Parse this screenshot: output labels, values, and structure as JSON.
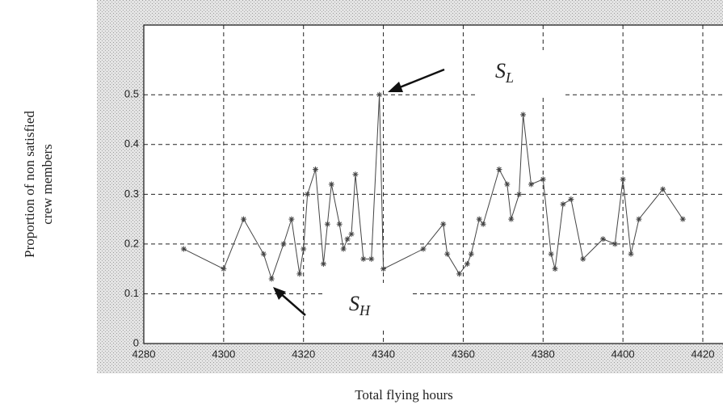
{
  "chart_data": {
    "type": "line",
    "xlabel": "Total flying hours",
    "ylabel": [
      "Proportion of non satisfied",
      "crew members"
    ],
    "annotations": [
      {
        "text": "S",
        "subscript": "L"
      },
      {
        "text": "S",
        "subscript": "H"
      }
    ],
    "x": [
      4290,
      4300,
      4305,
      4310,
      4312,
      4315,
      4317,
      4319,
      4320,
      4321,
      4323,
      4325,
      4326,
      4327,
      4329,
      4330,
      4331,
      4332,
      4333,
      4335,
      4337,
      4339,
      4340,
      4350,
      4355,
      4356,
      4359,
      4361,
      4362,
      4364,
      4365,
      4369,
      4371,
      4372,
      4374,
      4375,
      4377,
      4380,
      4382,
      4383,
      4385,
      4387,
      4390,
      4395,
      4398,
      4400,
      4402,
      4404,
      4410,
      4415
    ],
    "series": [
      {
        "color": "#444444",
        "values": [
          0.19,
          0.15,
          0.25,
          0.18,
          0.13,
          0.2,
          0.25,
          0.14,
          0.19,
          0.3,
          0.35,
          0.16,
          0.24,
          0.32,
          0.24,
          0.19,
          0.21,
          0.22,
          0.34,
          0.17,
          0.17,
          0.5,
          0.15,
          0.19,
          0.24,
          0.18,
          0.14,
          0.16,
          0.18,
          0.25,
          0.24,
          0.35,
          0.32,
          0.25,
          0.3,
          0.46,
          0.32,
          0.33,
          0.18,
          0.15,
          0.28,
          0.29,
          0.17,
          0.21,
          0.2,
          0.33,
          0.18,
          0.25,
          0.31,
          0.25
        ]
      }
    ],
    "xlim": [
      4280,
      4420
    ],
    "xticks": [
      4280,
      4300,
      4320,
      4340,
      4360,
      4380,
      4400,
      4420
    ],
    "ylim": [
      0,
      0.64
    ],
    "yticks": [
      0,
      0.1,
      0.2,
      0.3,
      0.4,
      0.5
    ],
    "grid": true
  }
}
